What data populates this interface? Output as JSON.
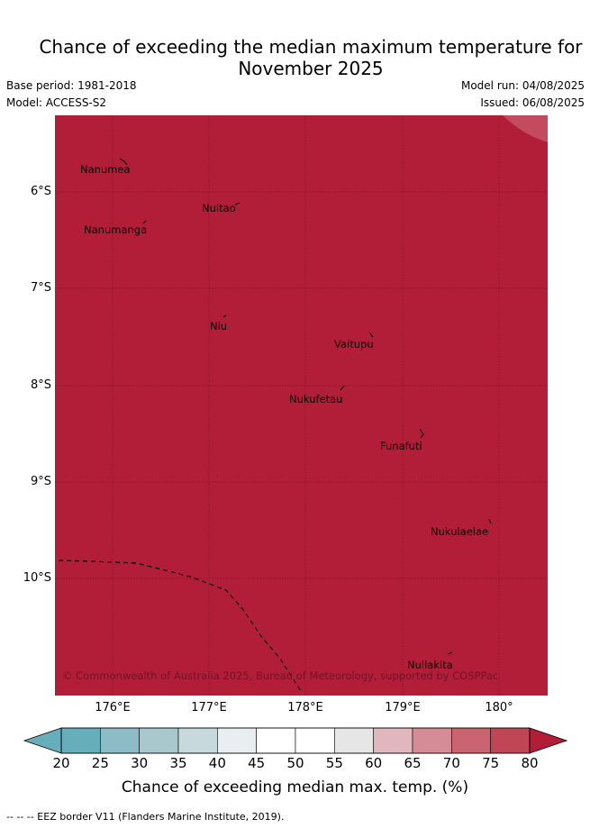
{
  "title_line1": "Chance of exceeding the median maximum temperature for",
  "title_line2": "November 2025",
  "base_period": "Base period: 1981-2018",
  "model": "Model: ACCESS-S2",
  "model_run": "Model run: 04/08/2025",
  "issued": "Issued: 06/08/2025",
  "copyright": "© Commonwealth of Australia 2025, Bureau of Meteorology, supported by COSPPac",
  "lat_labels": [
    "6°S",
    "7°S",
    "8°S",
    "9°S",
    "10°S"
  ],
  "lon_labels": [
    "176°E",
    "177°E",
    "178°E",
    "179°E",
    "180°"
  ],
  "places": [
    "Nanumea",
    "Nuitao",
    "Nanumanga",
    "Niu",
    "Vaitupu",
    "Nukufetau",
    "Funafuti",
    "Nukulaelae",
    "Nuilakita"
  ],
  "colorbar": {
    "title": "Chance of exceeding median max. temp. (%)",
    "ticks": [
      "20",
      "25",
      "30",
      "35",
      "40",
      "45",
      "50",
      "55",
      "60",
      "65",
      "70",
      "75",
      "80"
    ],
    "colors": {
      "below": "#67aebb",
      "bins": [
        "#67aebb",
        "#8ebcc6",
        "#a9c8cd",
        "#c8d9dd",
        "#e9eff1",
        "#ffffff",
        "#ffffff",
        "#e6e6e6",
        "#e0b7bf",
        "#d68c97",
        "#cb6471",
        "#c04656"
      ],
      "above": "#b21e38"
    }
  },
  "map_fill_color": "#b21e38",
  "eez_note": "--  --  -- EEZ border V11 (Flanders Marine Institute, 2019)."
}
